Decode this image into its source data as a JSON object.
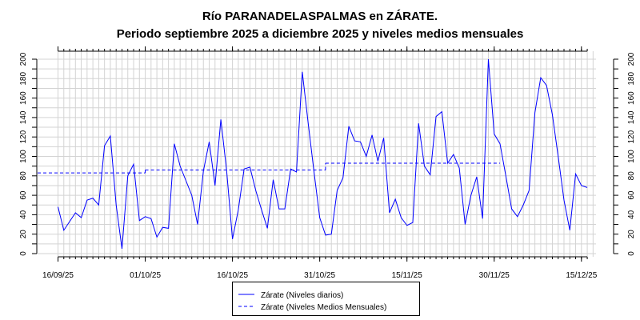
{
  "chart_data": {
    "type": "line",
    "title": "Río PARANADELASPALMAS en ZÁRATE.",
    "subtitle": "Periodo septiembre 2025 a diciembre 2025 y niveles medios mensuales",
    "xlabel": "",
    "ylabel": "",
    "ylim": [
      0,
      200
    ],
    "yticks": [
      0,
      20,
      40,
      60,
      80,
      100,
      120,
      140,
      160,
      180,
      200
    ],
    "x_start": "16/09/25",
    "xticks": [
      {
        "label": "16/09/25",
        "day": 0
      },
      {
        "label": "01/10/25",
        "day": 15
      },
      {
        "label": "16/10/25",
        "day": 30
      },
      {
        "label": "31/10/25",
        "day": 45
      },
      {
        "label": "15/11/25",
        "day": 60
      },
      {
        "label": "30/11/25",
        "day": 75
      },
      {
        "label": "15/12/25",
        "day": 90
      }
    ],
    "grid": true,
    "legend_position": "bottom-center",
    "series": [
      {
        "name": "Zárate (Niveles diarios)",
        "color": "#0000ff",
        "style": "solid",
        "values": [
          48,
          24,
          33,
          42,
          37,
          55,
          57,
          50,
          111,
          121,
          50,
          5,
          80,
          92,
          34,
          38,
          36,
          17,
          27,
          26,
          113,
          90,
          75,
          60,
          30,
          85,
          115,
          70,
          138,
          85,
          15,
          45,
          87,
          89,
          65,
          45,
          26,
          76,
          46,
          46,
          87,
          84,
          187,
          135,
          85,
          37,
          19,
          20,
          65,
          78,
          131,
          116,
          115,
          100,
          122,
          95,
          119,
          42,
          56,
          37,
          29,
          32,
          134,
          90,
          81,
          141,
          146,
          93,
          102,
          88,
          30,
          60,
          79,
          36,
          200,
          123,
          113,
          80,
          46,
          38,
          50,
          65,
          145,
          181,
          173,
          143,
          100,
          55,
          24,
          82,
          70,
          68
        ]
      },
      {
        "name": "Zárate (Niveles Medios Mensuales)",
        "color": "#0000ff",
        "style": "dashed",
        "segments": [
          {
            "month": "09/2025",
            "from_day": -15,
            "to_day": 15,
            "value": 83
          },
          {
            "month": "10/2025",
            "from_day": 15,
            "to_day": 46,
            "value": 86
          },
          {
            "month": "11/2025",
            "from_day": 46,
            "to_day": 76,
            "value": 93
          }
        ]
      }
    ]
  }
}
